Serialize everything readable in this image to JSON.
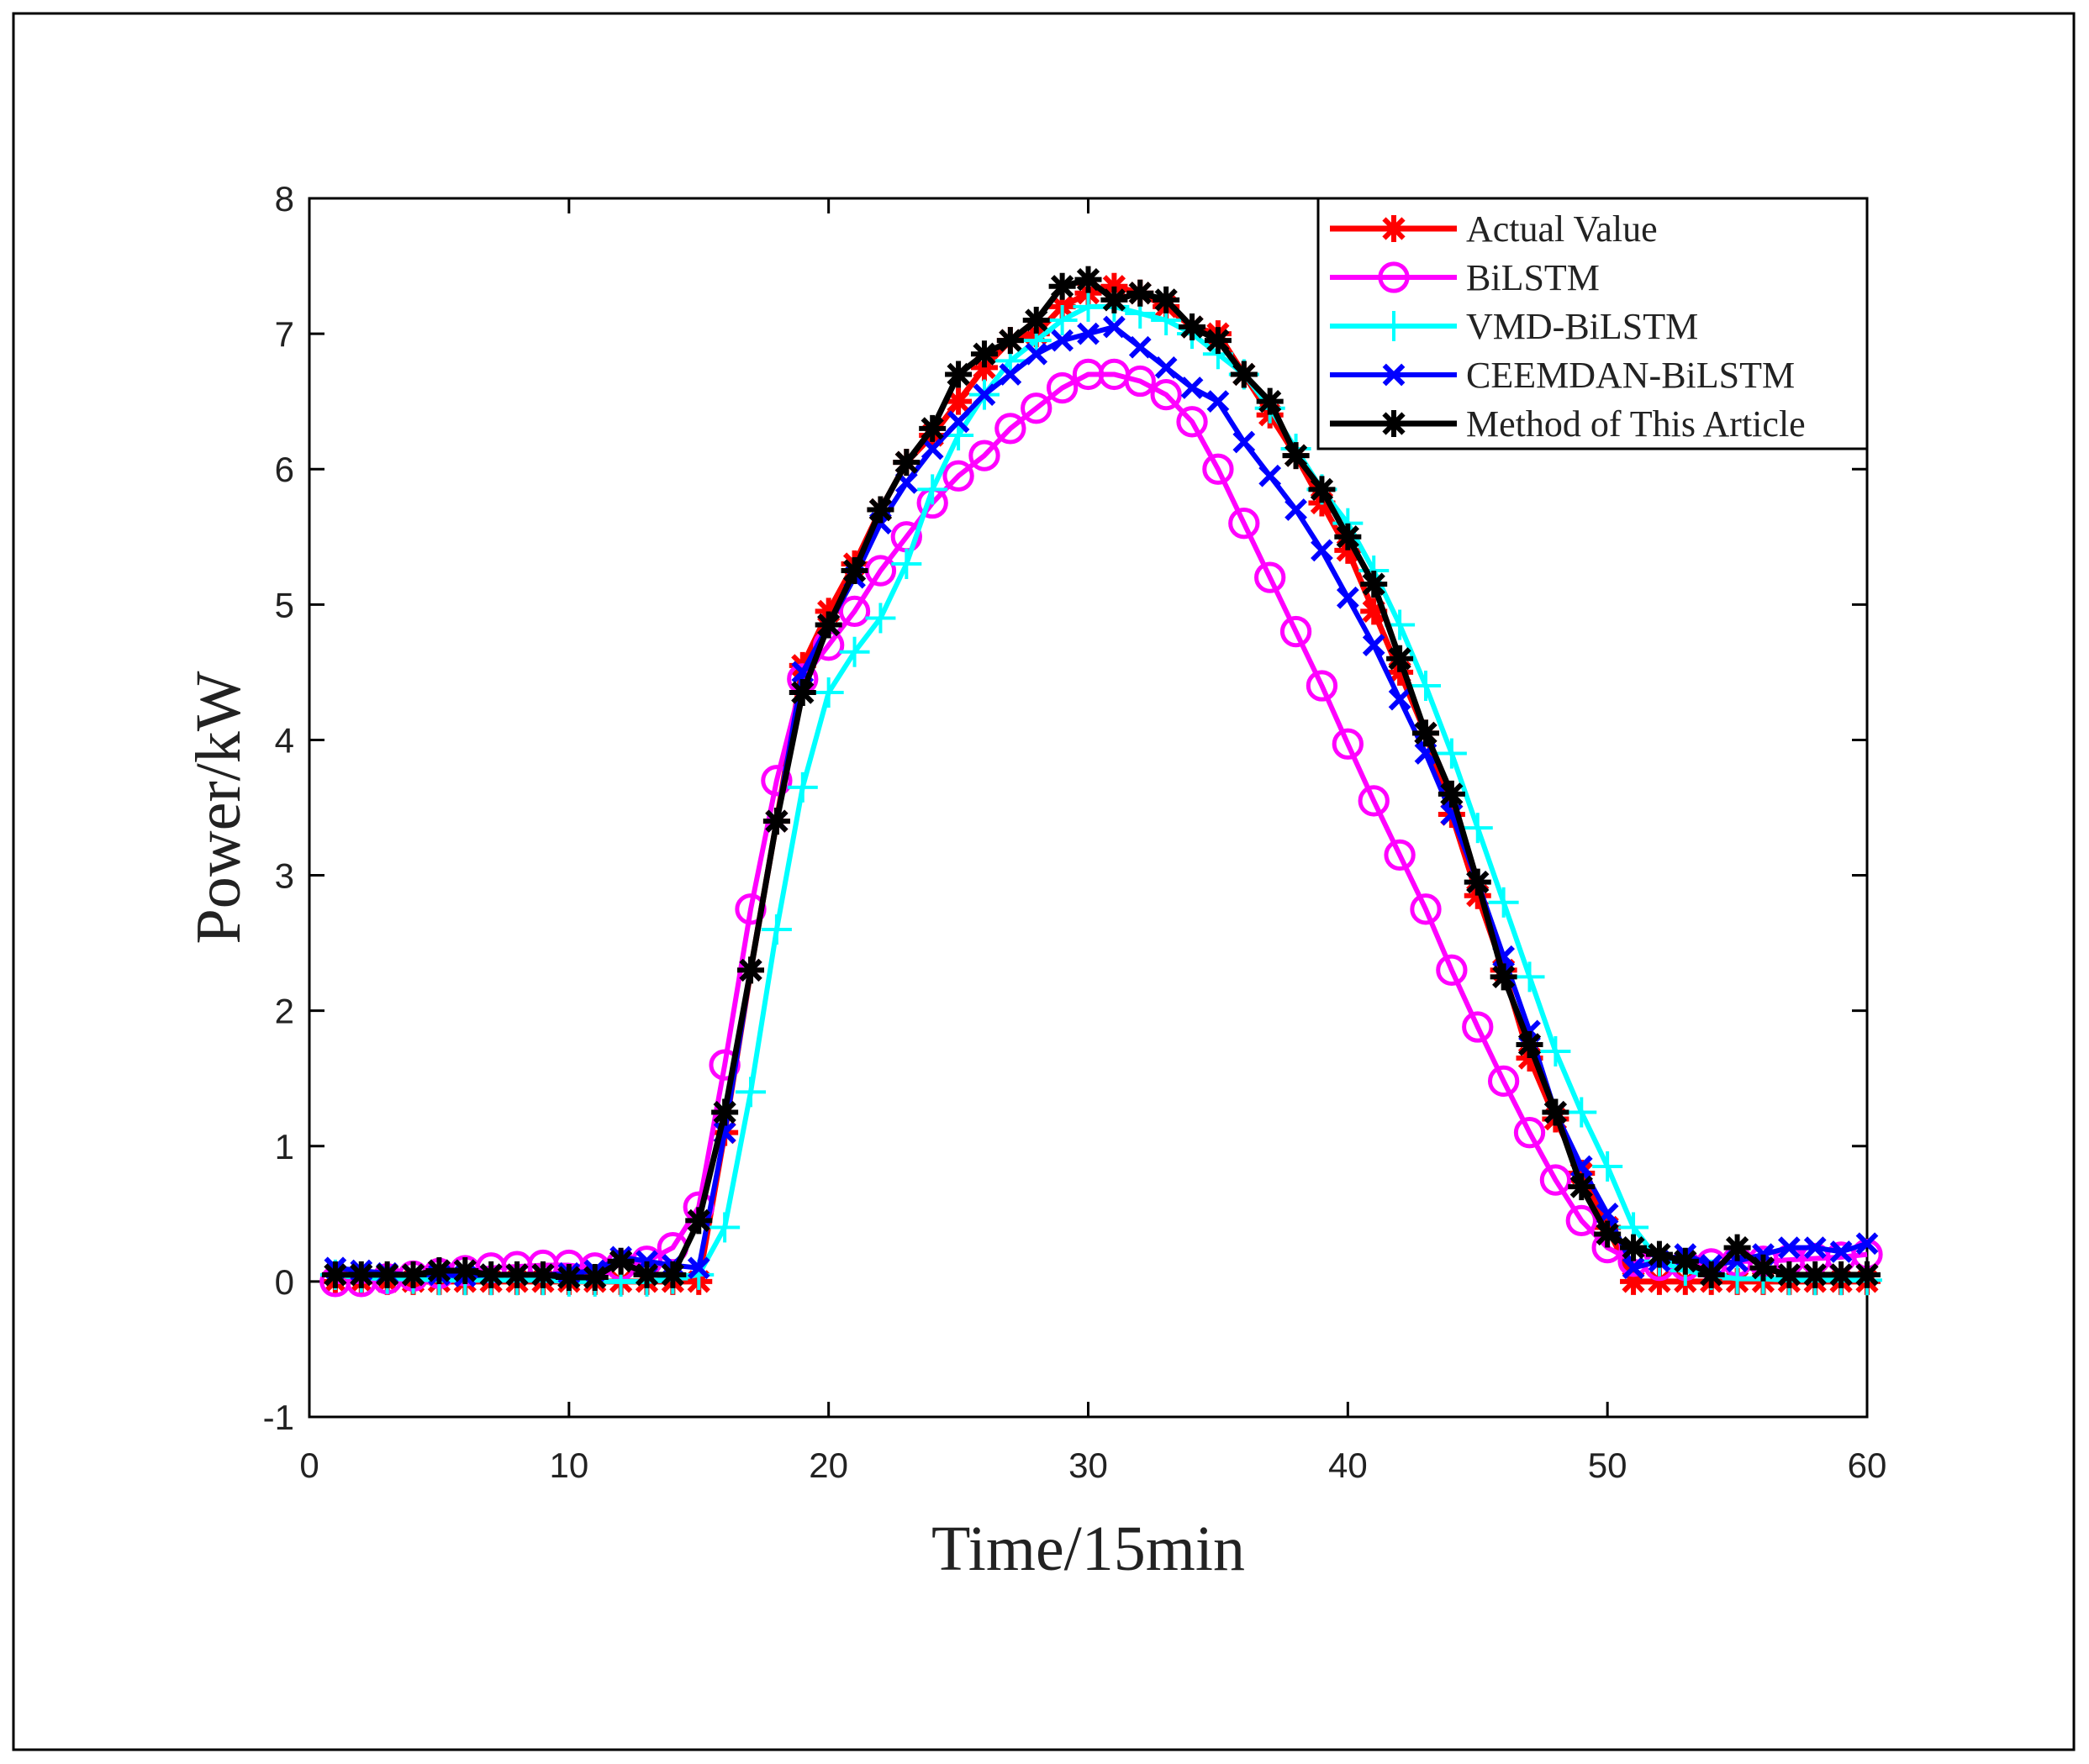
{
  "chart_data": {
    "type": "line",
    "title": "",
    "xlabel": "Time/15min",
    "ylabel": "Power/kW",
    "xlim": [
      0,
      60
    ],
    "ylim": [
      -1,
      8
    ],
    "xticks": [
      0,
      10,
      20,
      30,
      40,
      50,
      60
    ],
    "yticks": [
      -1,
      0,
      1,
      2,
      3,
      4,
      5,
      6,
      7,
      8
    ],
    "grid": false,
    "legend_position": "top-right",
    "x": [
      1,
      2,
      3,
      4,
      5,
      6,
      7,
      8,
      9,
      10,
      11,
      12,
      13,
      14,
      15,
      16,
      17,
      18,
      19,
      20,
      21,
      22,
      23,
      24,
      25,
      26,
      27,
      28,
      29,
      30,
      31,
      32,
      33,
      34,
      35,
      36,
      37,
      38,
      39,
      40,
      41,
      42,
      43,
      44,
      45,
      46,
      47,
      48,
      49,
      50,
      51,
      52,
      53,
      54,
      55,
      56,
      57,
      58,
      59,
      60
    ],
    "series": [
      {
        "name": "Actual Value",
        "color": "#ff0000",
        "marker": "asterisk",
        "values": [
          0,
          0,
          0,
          0,
          0,
          0,
          0,
          0,
          0,
          0,
          0,
          0,
          0,
          0,
          0,
          1.1,
          2.3,
          3.4,
          4.55,
          4.95,
          5.3,
          5.7,
          6.05,
          6.25,
          6.5,
          6.75,
          6.95,
          7.0,
          7.2,
          7.3,
          7.35,
          7.3,
          7.2,
          7.05,
          7.0,
          6.7,
          6.4,
          6.1,
          5.75,
          5.4,
          4.95,
          4.5,
          4.05,
          3.45,
          2.85,
          2.3,
          1.65,
          1.2,
          0.8,
          0.4,
          0,
          0,
          0,
          0,
          0,
          0,
          0,
          0,
          0,
          0
        ]
      },
      {
        "name": "BiLSTM",
        "color": "#ff00ff",
        "marker": "circle",
        "values": [
          0,
          0,
          0.02,
          0.04,
          0.06,
          0.08,
          0.1,
          0.11,
          0.12,
          0.12,
          0.1,
          0.12,
          0.15,
          0.25,
          0.55,
          1.6,
          2.75,
          3.7,
          4.45,
          4.7,
          4.95,
          5.25,
          5.5,
          5.75,
          5.95,
          6.1,
          6.3,
          6.45,
          6.6,
          6.7,
          6.7,
          6.65,
          6.55,
          6.35,
          6.0,
          5.6,
          5.2,
          4.8,
          4.4,
          3.97,
          3.55,
          3.15,
          2.75,
          2.3,
          1.88,
          1.48,
          1.1,
          0.75,
          0.45,
          0.25,
          0.15,
          0.12,
          0.12,
          0.13,
          0.15,
          0.15,
          0.16,
          0.17,
          0.18,
          0.2
        ]
      },
      {
        "name": "VMD-BiLSTM",
        "color": "#00ffff",
        "marker": "plus",
        "values": [
          0.05,
          0.03,
          0.02,
          0.02,
          0.01,
          0.01,
          0.01,
          0.01,
          0.01,
          0.0,
          0.0,
          0.0,
          0.0,
          0.02,
          0.05,
          0.4,
          1.4,
          2.6,
          3.65,
          4.35,
          4.65,
          4.9,
          5.3,
          5.85,
          6.25,
          6.55,
          6.8,
          6.95,
          7.1,
          7.2,
          7.2,
          7.15,
          7.1,
          7.0,
          6.85,
          6.7,
          6.45,
          6.15,
          5.85,
          5.6,
          5.25,
          4.85,
          4.4,
          3.9,
          3.35,
          2.8,
          2.25,
          1.7,
          1.25,
          0.85,
          0.4,
          0.15,
          0.08,
          0.05,
          0.02,
          0.02,
          0.01,
          0.01,
          0.01,
          0.01
        ]
      },
      {
        "name": "CEEMDAN-BiLSTM",
        "color": "#0000ff",
        "marker": "x",
        "values": [
          0.1,
          0.08,
          0.06,
          0.05,
          0.05,
          0.04,
          0.05,
          0.05,
          0.05,
          0.06,
          0.08,
          0.18,
          0.15,
          0.12,
          0.1,
          1.1,
          2.3,
          3.4,
          4.5,
          4.85,
          5.2,
          5.6,
          5.9,
          6.15,
          6.35,
          6.55,
          6.7,
          6.85,
          6.95,
          7.0,
          7.05,
          6.9,
          6.75,
          6.6,
          6.5,
          6.2,
          5.95,
          5.7,
          5.4,
          5.05,
          4.7,
          4.3,
          3.9,
          3.45,
          2.95,
          2.4,
          1.85,
          1.25,
          0.85,
          0.5,
          0.1,
          0.15,
          0.2,
          0.12,
          0.15,
          0.2,
          0.25,
          0.25,
          0.22,
          0.28
        ]
      },
      {
        "name": "Method of This Article",
        "color": "#000000",
        "marker": "asterisk",
        "values": [
          0.05,
          0.05,
          0.05,
          0.05,
          0.08,
          0.08,
          0.05,
          0.05,
          0.05,
          0.03,
          0.03,
          0.15,
          0.05,
          0.05,
          0.45,
          1.25,
          2.3,
          3.4,
          4.35,
          4.85,
          5.25,
          5.7,
          6.05,
          6.3,
          6.7,
          6.85,
          6.95,
          7.1,
          7.35,
          7.4,
          7.25,
          7.3,
          7.25,
          7.05,
          6.95,
          6.7,
          6.5,
          6.1,
          5.85,
          5.5,
          5.15,
          4.6,
          4.05,
          3.6,
          2.95,
          2.25,
          1.75,
          1.25,
          0.7,
          0.35,
          0.25,
          0.2,
          0.15,
          0.05,
          0.25,
          0.1,
          0.05,
          0.05,
          0.05,
          0.05
        ]
      }
    ]
  }
}
